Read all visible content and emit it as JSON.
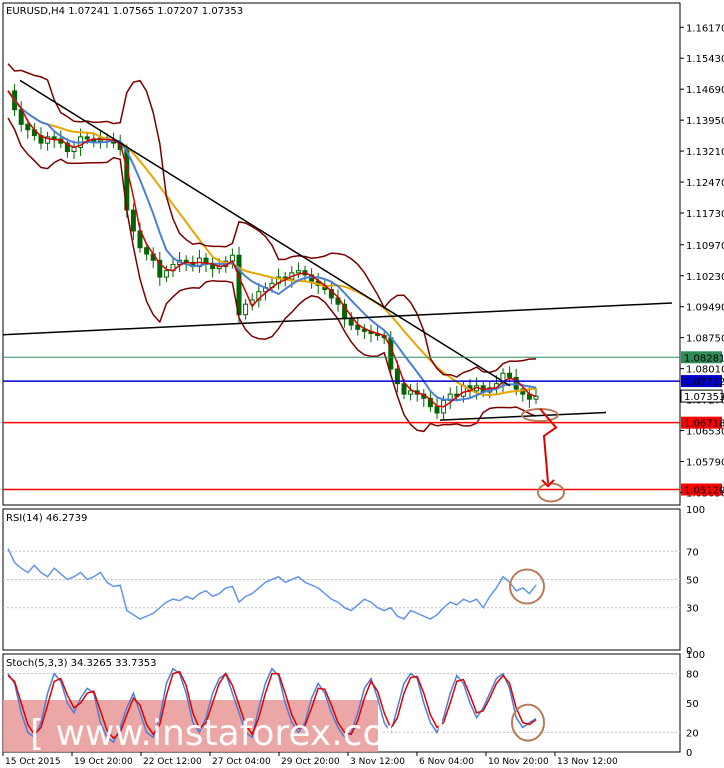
{
  "header": {
    "title": "EURUSD,H4 1.07241 1.07565 1.07207 1.07353"
  },
  "chart_data": [
    {
      "type": "candlestick",
      "title": "EURUSD,H4 1.07241 1.07565 1.07207 1.07353",
      "ylim": [
        1.0475,
        1.1675
      ],
      "y_ticks": [
        "1.16170",
        "1.15430",
        "1.14690",
        "1.13950",
        "1.13210",
        "1.12470",
        "1.11730",
        "1.10970",
        "1.10230",
        "1.09490",
        "1.08750",
        "1.08010",
        "1.07270",
        "1.06530",
        "1.05790",
        "1.05050"
      ],
      "x_ticks": [
        "15 Oct 2015",
        "19 Oct 20:00",
        "22 Oct 12:00",
        "27 Oct 04:00",
        "29 Oct 20:00",
        "3 Nov 12:00",
        "6 Nov 04:00",
        "10 Nov 20:00",
        "13 Nov 12:00"
      ],
      "horizontal_levels": [
        {
          "label": "1.08281",
          "value": 1.08281,
          "color": "#2e8b57"
        },
        {
          "label": "1.07712",
          "value": 1.07712,
          "color": "#0000cc"
        },
        {
          "label": "1.07353",
          "value": 1.07353,
          "color": "#000000"
        },
        {
          "label": "1.06718",
          "value": 1.06718,
          "color": "#ff0000"
        },
        {
          "label": "1.05120",
          "value": 1.0512,
          "color": "#ff0000"
        }
      ],
      "close_series": [
        1.1465,
        1.142,
        1.1385,
        1.1372,
        1.1358,
        1.134,
        1.1355,
        1.135,
        1.134,
        1.132,
        1.133,
        1.1355,
        1.135,
        1.1345,
        1.1352,
        1.1349,
        1.134,
        1.1325,
        1.118,
        1.113,
        1.109,
        1.1075,
        1.106,
        1.102,
        1.1035,
        1.105,
        1.106,
        1.1055,
        1.1045,
        1.1065,
        1.105,
        1.104,
        1.1045,
        1.1058,
        1.1072,
        1.093,
        1.0955,
        1.0965,
        1.0985,
        1.0995,
        1.1005,
        1.102,
        1.1015,
        1.103,
        1.1035,
        1.1025,
        1.101,
        1.1,
        1.099,
        1.097,
        1.0955,
        1.092,
        1.0905,
        1.0895,
        1.089,
        1.0885,
        1.088,
        1.0875,
        1.08,
        1.0765,
        1.074,
        1.0748,
        1.074,
        1.073,
        1.071,
        1.0695,
        1.0725,
        1.074,
        1.0735,
        1.076,
        1.0748,
        1.076,
        1.0745,
        1.0755,
        1.0765,
        1.079,
        1.078,
        1.0752,
        1.074,
        1.0728,
        1.0735
      ]
    },
    {
      "type": "line",
      "title": "RSI(14) 46.2739",
      "ylim": [
        0,
        100
      ],
      "y_ticks": [
        "100",
        "70",
        "50",
        "30",
        "0"
      ],
      "series": [
        {
          "values": [
            72,
            62,
            58,
            55,
            60,
            55,
            52,
            58,
            54,
            50,
            52,
            55,
            50,
            52,
            55,
            48,
            45,
            46,
            28,
            25,
            22,
            24,
            26,
            30,
            34,
            36,
            35,
            38,
            36,
            40,
            42,
            38,
            40,
            44,
            45,
            34,
            38,
            40,
            44,
            48,
            50,
            52,
            48,
            50,
            52,
            48,
            46,
            44,
            40,
            36,
            34,
            30,
            28,
            32,
            36,
            34,
            30,
            28,
            30,
            24,
            22,
            28,
            26,
            24,
            22,
            25,
            30,
            34,
            32,
            36,
            34,
            36,
            30,
            38,
            44,
            52,
            48,
            42,
            44,
            40,
            46
          ]
        }
      ]
    },
    {
      "type": "line",
      "title": "Stoch(5,3,3) 34.3265 33.7353",
      "ylim": [
        0,
        100
      ],
      "y_ticks": [
        "100",
        "80",
        "50",
        "20",
        "0"
      ],
      "series": [
        {
          "values": [
            80,
            70,
            40,
            20,
            15,
            30,
            60,
            80,
            72,
            50,
            40,
            55,
            65,
            60,
            30,
            15,
            10,
            25,
            45,
            60,
            40,
            20,
            15,
            35,
            70,
            85,
            80,
            60,
            30,
            20,
            35,
            60,
            75,
            80,
            60,
            40,
            20,
            15,
            45,
            70,
            85,
            78,
            50,
            30,
            20,
            30,
            55,
            70,
            60,
            40,
            25,
            15,
            20,
            40,
            65,
            75,
            55,
            30,
            20,
            45,
            70,
            80,
            75,
            50,
            30,
            20,
            35,
            60,
            78,
            70,
            50,
            35,
            45,
            60,
            75,
            80,
            65,
            35,
            25,
            30,
            34
          ]
        },
        {
          "values": [
            78,
            72,
            50,
            28,
            18,
            25,
            48,
            72,
            75,
            58,
            45,
            50,
            60,
            62,
            42,
            22,
            14,
            20,
            38,
            55,
            48,
            28,
            18,
            28,
            58,
            80,
            82,
            68,
            40,
            24,
            30,
            50,
            70,
            80,
            68,
            48,
            28,
            18,
            35,
            60,
            80,
            80,
            60,
            38,
            24,
            27,
            45,
            65,
            64,
            48,
            30,
            20,
            18,
            32,
            55,
            72,
            62,
            40,
            24,
            35,
            60,
            76,
            77,
            60,
            38,
            25,
            30,
            50,
            72,
            74,
            58,
            40,
            42,
            55,
            70,
            78,
            70,
            45,
            30,
            28,
            33
          ]
        }
      ]
    }
  ],
  "annotations": {
    "watermark": "instaforex.com"
  }
}
